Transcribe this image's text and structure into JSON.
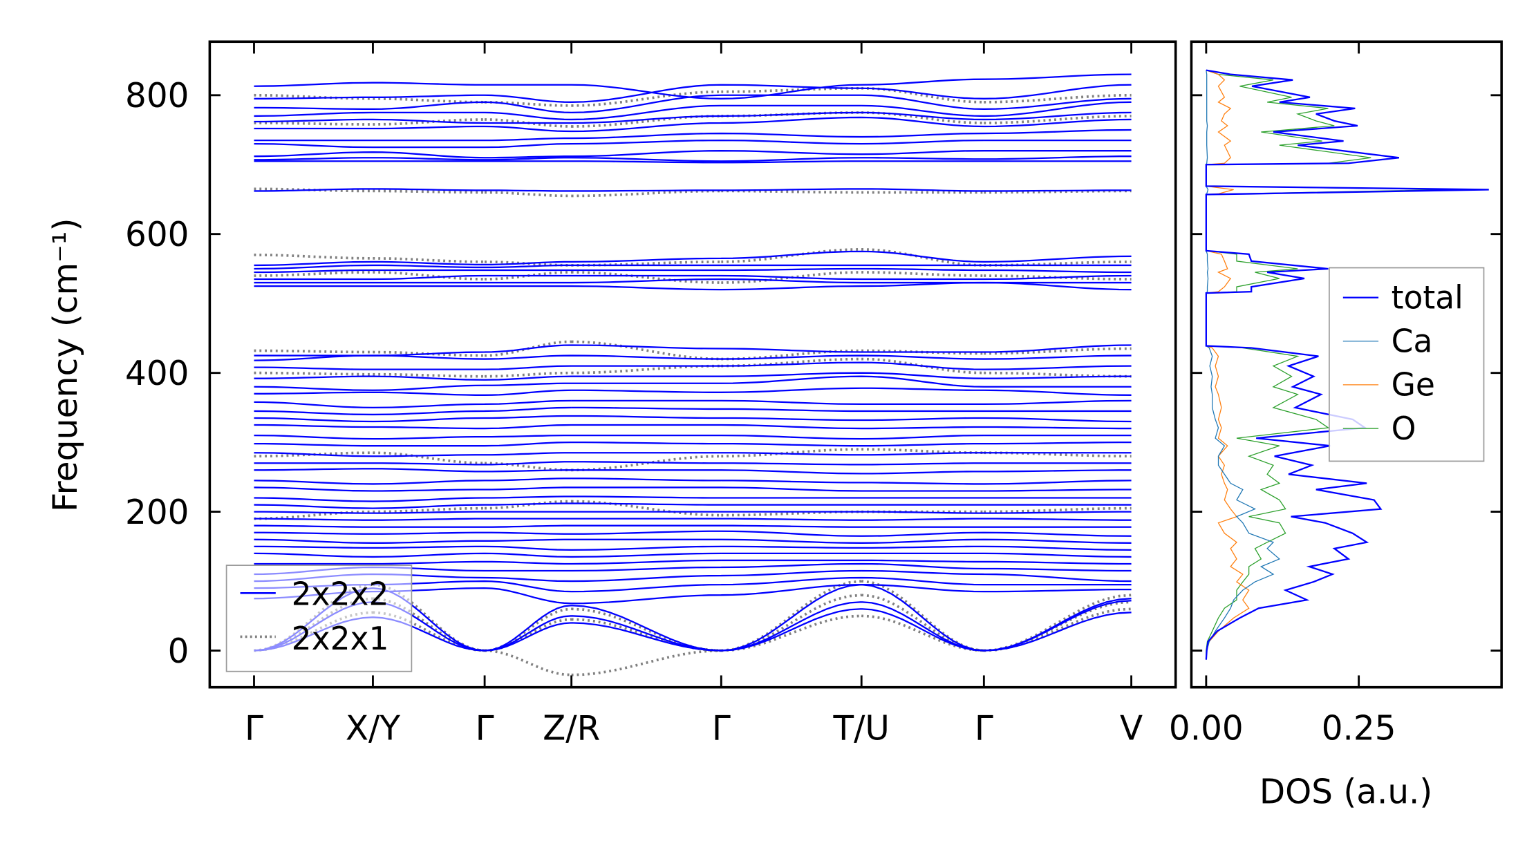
{
  "chart_data": [
    {
      "type": "line",
      "title": "",
      "ylabel": "Frequency (cm⁻¹)",
      "ylim": [
        -53,
        877
      ],
      "yticks": [
        "0",
        "200",
        "400",
        "600",
        "800"
      ],
      "ytick_values": [
        0,
        200,
        400,
        600,
        800
      ],
      "kpoints": [
        {
          "label": "Γ",
          "k": 0
        },
        {
          "label": "X/Y",
          "k": 1.0
        },
        {
          "label": "Γ",
          "k": 1.94
        },
        {
          "label": "Z/R",
          "k": 2.67
        },
        {
          "label": "Γ",
          "k": 3.93
        },
        {
          "label": "T/U",
          "k": 5.11
        },
        {
          "label": "Γ",
          "k": 6.14
        },
        {
          "label": "V",
          "k": 7.38
        }
      ],
      "legend": {
        "placement": "lower-left",
        "entries": [
          "2x2x2",
          "2x2x1"
        ]
      },
      "series": [
        {
          "name": "2x2x2",
          "color": "#0000ff",
          "style": "solid",
          "bands": [
            [
              813,
              818,
              815,
              815,
              795,
              815,
              823,
              830
            ],
            [
              795,
              797,
              800,
              790,
              815,
              810,
              795,
              815
            ],
            [
              782,
              780,
              790,
              775,
              800,
              800,
              780,
              795
            ],
            [
              770,
              775,
              775,
              765,
              785,
              785,
              770,
              790
            ],
            [
              762,
              765,
              760,
              760,
              770,
              775,
              765,
              775
            ],
            [
              752,
              752,
              755,
              748,
              760,
              768,
              755,
              765
            ],
            [
              735,
              735,
              735,
              738,
              745,
              740,
              745,
              750
            ],
            [
              730,
              725,
              725,
              730,
              735,
              730,
              735,
              735
            ],
            [
              712,
              718,
              710,
              712,
              720,
              715,
              720,
              720
            ],
            [
              707,
              710,
              707,
              710,
              705,
              710,
              708,
              712
            ],
            [
              705,
              705,
              705,
              705,
              703,
              705,
              705,
              705
            ],
            [
              662,
              665,
              663,
              662,
              663,
              665,
              662,
              663
            ],
            [
              555,
              560,
              556,
              560,
              565,
              575,
              560,
              568
            ],
            [
              550,
              555,
              552,
              555,
              555,
              555,
              555,
              555
            ],
            [
              545,
              548,
              548,
              548,
              548,
              550,
              548,
              545
            ],
            [
              535,
              535,
              540,
              540,
              540,
              535,
              535,
              540
            ],
            [
              530,
              530,
              530,
              530,
              535,
              530,
              530,
              530
            ],
            [
              525,
              525,
              525,
              525,
              520,
              525,
              530,
              520
            ],
            [
              0,
              48,
              0,
              40,
              0,
              60,
              0,
              55
            ],
            [
              0,
              70,
              0,
              50,
              0,
              70,
              0,
              72
            ],
            [
              0,
              90,
              0,
              65,
              0,
              95,
              0,
              75
            ],
            [
              75,
              85,
              90,
              68,
              80,
              95,
              85,
              88
            ],
            [
              90,
              95,
              100,
              85,
              95,
              105,
              95,
              95
            ],
            [
              100,
              110,
              105,
              100,
              108,
              115,
              110,
              100
            ],
            [
              110,
              120,
              115,
              115,
              120,
              125,
              118,
              115
            ],
            [
              125,
              125,
              128,
              125,
              130,
              130,
              128,
              125
            ],
            [
              140,
              135,
              140,
              135,
              140,
              140,
              140,
              135
            ],
            [
              150,
              148,
              150,
              145,
              150,
              148,
              150,
              145
            ],
            [
              160,
              155,
              158,
              160,
              160,
              155,
              160,
              155
            ],
            [
              170,
              168,
              170,
              168,
              172,
              165,
              170,
              165
            ],
            [
              180,
              178,
              178,
              180,
              180,
              178,
              178,
              178
            ],
            [
              190,
              188,
              190,
              190,
              190,
              188,
              190,
              188
            ],
            [
              200,
              198,
              200,
              200,
              200,
              200,
              198,
              200
            ],
            [
              210,
              205,
              210,
              212,
              210,
              210,
              210,
              210
            ],
            [
              220,
              215,
              220,
              222,
              220,
              220,
              220,
              220
            ],
            [
              235,
              230,
              232,
              235,
              235,
              230,
              230,
              232
            ],
            [
              245,
              240,
              245,
              248,
              245,
              242,
              240,
              245
            ],
            [
              260,
              262,
              258,
              260,
              260,
              255,
              258,
              260
            ],
            [
              270,
              270,
              268,
              272,
              270,
              268,
              270,
              270
            ],
            [
              285,
              280,
              282,
              285,
              285,
              282,
              285,
              285
            ],
            [
              298,
              295,
              295,
              300,
              298,
              295,
              298,
              300
            ],
            [
              310,
              305,
              308,
              310,
              310,
              305,
              310,
              310
            ],
            [
              325,
              322,
              320,
              325,
              325,
              320,
              322,
              320
            ],
            [
              335,
              330,
              335,
              338,
              335,
              332,
              335,
              330
            ],
            [
              345,
              340,
              345,
              350,
              348,
              345,
              345,
              345
            ],
            [
              358,
              350,
              355,
              360,
              360,
              355,
              355,
              360
            ],
            [
              370,
              372,
              368,
              375,
              372,
              378,
              375,
              368
            ],
            [
              380,
              375,
              382,
              385,
              385,
              395,
              380,
              380
            ],
            [
              392,
              395,
              390,
              395,
              395,
              400,
              392,
              395
            ],
            [
              408,
              405,
              405,
              410,
              410,
              415,
              405,
              410
            ],
            [
              418,
              425,
              420,
              425,
              420,
              425,
              420,
              425
            ],
            [
              425,
              425,
              430,
              440,
              435,
              430,
              430,
              440
            ]
          ]
        },
        {
          "name": "2x2x1",
          "color": "#808080",
          "style": "dotted",
          "bands": [
            [
              0,
              55,
              0,
              -35,
              0,
              50,
              0,
              60
            ],
            [
              0,
              75,
              0,
              45,
              0,
              80,
              0,
              70
            ],
            [
              0,
              95,
              0,
              60,
              0,
              100,
              0,
              80
            ],
            [
              665,
              662,
              660,
              655,
              662,
              660,
              660,
              662
            ],
            [
              540,
              545,
              535,
              545,
              530,
              545,
              540,
              535
            ],
            [
              570,
              565,
              560,
              555,
              560,
              578,
              555,
              560
            ],
            [
              432,
              430,
              425,
              445,
              420,
              432,
              428,
              435
            ],
            [
              400,
              398,
              395,
              400,
              410,
              420,
              400,
              395
            ],
            [
              190,
              200,
              205,
              215,
              195,
              200,
              200,
              205
            ],
            [
              280,
              285,
              270,
              260,
              280,
              290,
              285,
              280
            ],
            [
              800,
              795,
              790,
              785,
              805,
              810,
              790,
              800
            ],
            [
              760,
              758,
              765,
              755,
              770,
              775,
              760,
              770
            ]
          ]
        }
      ]
    },
    {
      "type": "line",
      "xlabel": "DOS (a.u.)",
      "xticks": [
        "0.00",
        "0.25"
      ],
      "xtick_values": [
        0,
        0.25
      ],
      "xlim": [
        -0.024,
        0.484
      ],
      "ylim": [
        -53,
        877
      ],
      "legend": {
        "placement": "center-right",
        "entries": [
          "total",
          "Ca",
          "Ge",
          "O"
        ]
      },
      "frequency": [
        -13,
        0,
        13,
        28,
        47,
        61,
        73,
        87,
        99,
        110,
        121,
        132,
        147,
        156,
        169,
        184,
        193,
        204,
        217,
        232,
        241,
        254,
        267,
        280,
        295,
        306,
        321,
        333,
        350,
        369,
        380,
        395,
        410,
        424,
        436,
        439,
        515,
        517,
        524,
        536,
        545,
        550,
        561,
        571,
        576,
        657,
        658,
        664,
        669,
        700,
        702,
        710,
        728,
        734,
        747,
        756,
        763,
        773,
        781,
        790,
        797,
        813,
        822,
        830,
        836
      ],
      "series": [
        {
          "name": "total",
          "color": "#0000ff",
          "values": [
            0,
            0.001,
            0.003,
            0.018,
            0.055,
            0.086,
            0.165,
            0.13,
            0.176,
            0.207,
            0.169,
            0.233,
            0.21,
            0.263,
            0.24,
            0.195,
            0.139,
            0.286,
            0.275,
            0.18,
            0.263,
            0.135,
            0.173,
            0.112,
            0.203,
            0.082,
            0.26,
            0.24,
            0.146,
            0.188,
            0.142,
            0.176,
            0.135,
            0.184,
            0.074,
            0,
            0,
            0.074,
            0.074,
            0.161,
            0.1,
            0.2,
            0.074,
            0.07,
            0,
            0,
            0.074,
            0.463,
            0,
            0,
            0.233,
            0.316,
            0.15,
            0.225,
            0.11,
            0.248,
            0.21,
            0.18,
            0.244,
            0.12,
            0.17,
            0.075,
            0.142,
            0.04,
            0
          ]
        },
        {
          "name": "Ca",
          "color": "#1f77b4",
          "values": [
            0,
            0.001,
            0.005,
            0.015,
            0.03,
            0.04,
            0.045,
            0.06,
            0.08,
            0.11,
            0.09,
            0.12,
            0.1,
            0.11,
            0.07,
            0.06,
            0.05,
            0.08,
            0.05,
            0.06,
            0.04,
            0.03,
            0.02,
            0.02,
            0.03,
            0.015,
            0.02,
            0.015,
            0.01,
            0.01,
            0.008,
            0.01,
            0.006,
            0.01,
            0.005,
            0,
            0,
            0.002,
            0.002,
            0.003,
            0.002,
            0.003,
            0.002,
            0.002,
            0,
            0,
            0.001,
            0.003,
            0,
            0,
            0.001,
            0.002,
            0.001,
            0.001,
            0.001,
            0.002,
            0.001,
            0.001,
            0.001,
            0.001,
            0.001,
            0.001,
            0.001,
            0.001,
            0
          ]
        },
        {
          "name": "Ge",
          "color": "#ff7f0e",
          "values": [
            0,
            0.001,
            0.005,
            0.02,
            0.045,
            0.07,
            0.06,
            0.07,
            0.05,
            0.06,
            0.04,
            0.05,
            0.04,
            0.05,
            0.03,
            0.02,
            0.05,
            0.04,
            0.03,
            0.035,
            0.03,
            0.025,
            0.03,
            0.02,
            0.035,
            0.02,
            0.025,
            0.02,
            0.025,
            0.02,
            0.015,
            0.02,
            0.015,
            0.02,
            0.01,
            0,
            0,
            0.02,
            0.03,
            0.04,
            0.02,
            0.035,
            0.03,
            0.025,
            0,
            0,
            0.02,
            0.045,
            0,
            0,
            0.03,
            0.04,
            0.03,
            0.04,
            0.02,
            0.035,
            0.025,
            0.03,
            0.04,
            0.02,
            0.03,
            0.02,
            0.03,
            0.02,
            0
          ]
        },
        {
          "name": "O",
          "color": "#2ca02c",
          "values": [
            0,
            0,
            0.002,
            0.01,
            0.02,
            0.03,
            0.05,
            0.05,
            0.06,
            0.07,
            0.07,
            0.09,
            0.08,
            0.1,
            0.13,
            0.12,
            0.07,
            0.13,
            0.12,
            0.09,
            0.12,
            0.1,
            0.11,
            0.07,
            0.12,
            0.05,
            0.2,
            0.18,
            0.11,
            0.15,
            0.11,
            0.14,
            0.11,
            0.15,
            0.06,
            0,
            0,
            0.05,
            0.05,
            0.12,
            0.08,
            0.15,
            0.05,
            0.05,
            0,
            0,
            0.05,
            0.4,
            0,
            0,
            0.2,
            0.27,
            0.12,
            0.19,
            0.09,
            0.21,
            0.18,
            0.15,
            0.2,
            0.1,
            0.14,
            0.055,
            0.11,
            0.02,
            0
          ]
        }
      ]
    }
  ]
}
